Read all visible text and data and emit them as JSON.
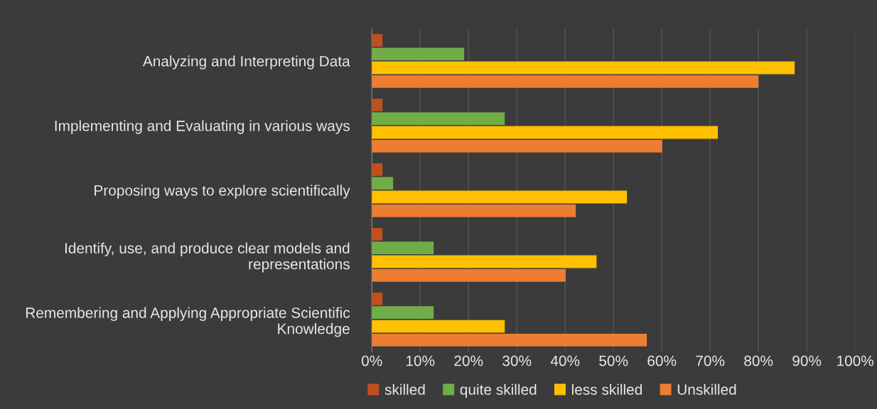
{
  "chart_data": {
    "type": "bar",
    "orientation": "horizontal",
    "categories": [
      "Analyzing and Interpreting Data",
      "Implementing and Evaluating in various ways",
      "Proposing ways to explore scientifically",
      "Identify, use, and produce clear models and\nrepresentations",
      "Remembering and Applying Appropriate Scientific\nKnowledge"
    ],
    "series": [
      {
        "name": "skilled",
        "color": "#c0501f",
        "values": [
          2.2,
          2.2,
          2.2,
          2.2,
          2.2
        ]
      },
      {
        "name": "quite skilled",
        "color": "#70ad47",
        "values": [
          19.1,
          27.5,
          4.4,
          12.8,
          12.8
        ]
      },
      {
        "name": "less skilled",
        "color": "#ffc000",
        "values": [
          87.5,
          71.6,
          52.8,
          46.5,
          27.5
        ]
      },
      {
        "name": "Unskilled",
        "color": "#ed7d31",
        "values": [
          80,
          60.1,
          42.2,
          40.1,
          56.9
        ]
      }
    ],
    "xlim": [
      0,
      100
    ],
    "xticks": [
      {
        "value": 0,
        "label": "0%"
      },
      {
        "value": 10,
        "label": "10%"
      },
      {
        "value": 20,
        "label": "20%"
      },
      {
        "value": 30,
        "label": "30%"
      },
      {
        "value": 40,
        "label": "40%"
      },
      {
        "value": 50,
        "label": "50%"
      },
      {
        "value": 60,
        "label": "60%"
      },
      {
        "value": 70,
        "label": "70%"
      },
      {
        "value": 80,
        "label": "80%"
      },
      {
        "value": 90,
        "label": "90%"
      },
      {
        "value": 100,
        "label": "100%"
      }
    ],
    "grid": "x",
    "legend": "bottom"
  }
}
